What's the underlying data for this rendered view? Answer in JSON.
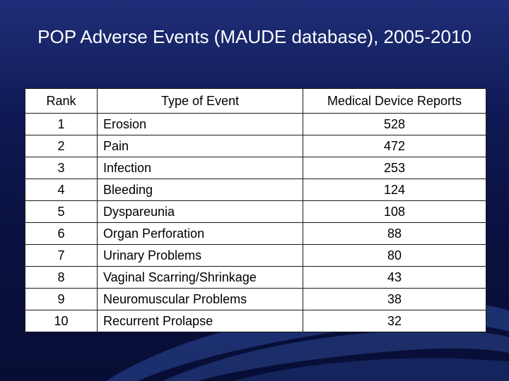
{
  "slide": {
    "title": "POP Adverse Events (MAUDE database), 2005-2010"
  },
  "table": {
    "headers": {
      "rank": "Rank",
      "type": "Type of Event",
      "reports": "Medical Device Reports"
    },
    "rows": [
      {
        "rank": "1",
        "type": "Erosion",
        "reports": "528"
      },
      {
        "rank": "2",
        "type": "Pain",
        "reports": "472"
      },
      {
        "rank": "3",
        "type": "Infection",
        "reports": "253"
      },
      {
        "rank": "4",
        "type": "Bleeding",
        "reports": "124"
      },
      {
        "rank": "5",
        "type": "Dyspareunia",
        "reports": "108"
      },
      {
        "rank": "6",
        "type": "Organ Perforation",
        "reports": "88"
      },
      {
        "rank": "7",
        "type": "Urinary Problems",
        "reports": "80"
      },
      {
        "rank": "8",
        "type": "Vaginal Scarring/Shrinkage",
        "reports": "43"
      },
      {
        "rank": "9",
        "type": "Neuromuscular Problems",
        "reports": "38"
      },
      {
        "rank": "10",
        "type": "Recurrent Prolapse",
        "reports": "32"
      }
    ]
  }
}
